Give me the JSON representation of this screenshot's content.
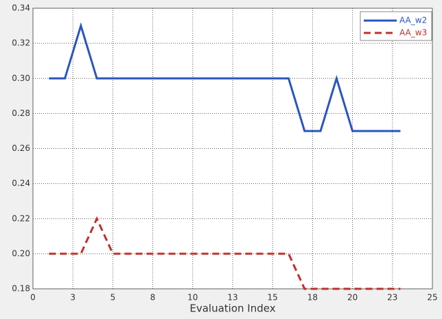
{
  "chart_data": {
    "type": "line",
    "xlabel": "Evaluation Index",
    "x": [
      1,
      2,
      3,
      4,
      5,
      6,
      7,
      8,
      9,
      10,
      11,
      12,
      13,
      14,
      15,
      16,
      17,
      18,
      19,
      20,
      21,
      22,
      23
    ],
    "series": [
      {
        "name": "AA_w2",
        "color": "#2a55c0",
        "dash": false,
        "values": [
          0.3,
          0.3,
          0.33,
          0.3,
          0.3,
          0.3,
          0.3,
          0.3,
          0.3,
          0.3,
          0.3,
          0.3,
          0.3,
          0.3,
          0.3,
          0.3,
          0.27,
          0.27,
          0.3,
          0.27,
          0.27,
          0.27,
          0.27
        ]
      },
      {
        "name": "AA_w3",
        "color": "#c0302a",
        "dash": true,
        "values": [
          0.2,
          0.2,
          0.2,
          0.22,
          0.2,
          0.2,
          0.2,
          0.2,
          0.2,
          0.2,
          0.2,
          0.2,
          0.2,
          0.2,
          0.2,
          0.2,
          0.18,
          0.18,
          0.18,
          0.18,
          0.18,
          0.18,
          0.18
        ]
      }
    ],
    "xlim": [
      0,
      25
    ],
    "xticks": [
      0,
      {
        "value": 2.5,
        "label": "3"
      },
      5,
      {
        "value": 7.5,
        "label": "8"
      },
      10,
      {
        "value": 12.5,
        "label": "13"
      },
      15,
      {
        "value": 17.5,
        "label": "18"
      },
      20,
      {
        "value": 22.5,
        "label": "23"
      },
      25
    ],
    "ylim": [
      0.18,
      0.34
    ],
    "yticks": [
      0.18,
      {
        "value": 0.2,
        "label": "0.20"
      },
      0.22,
      0.24,
      0.26,
      0.28,
      {
        "value": 0.3,
        "label": "0.30"
      },
      0.32,
      0.34
    ],
    "grid": true,
    "legend": "upper right"
  }
}
